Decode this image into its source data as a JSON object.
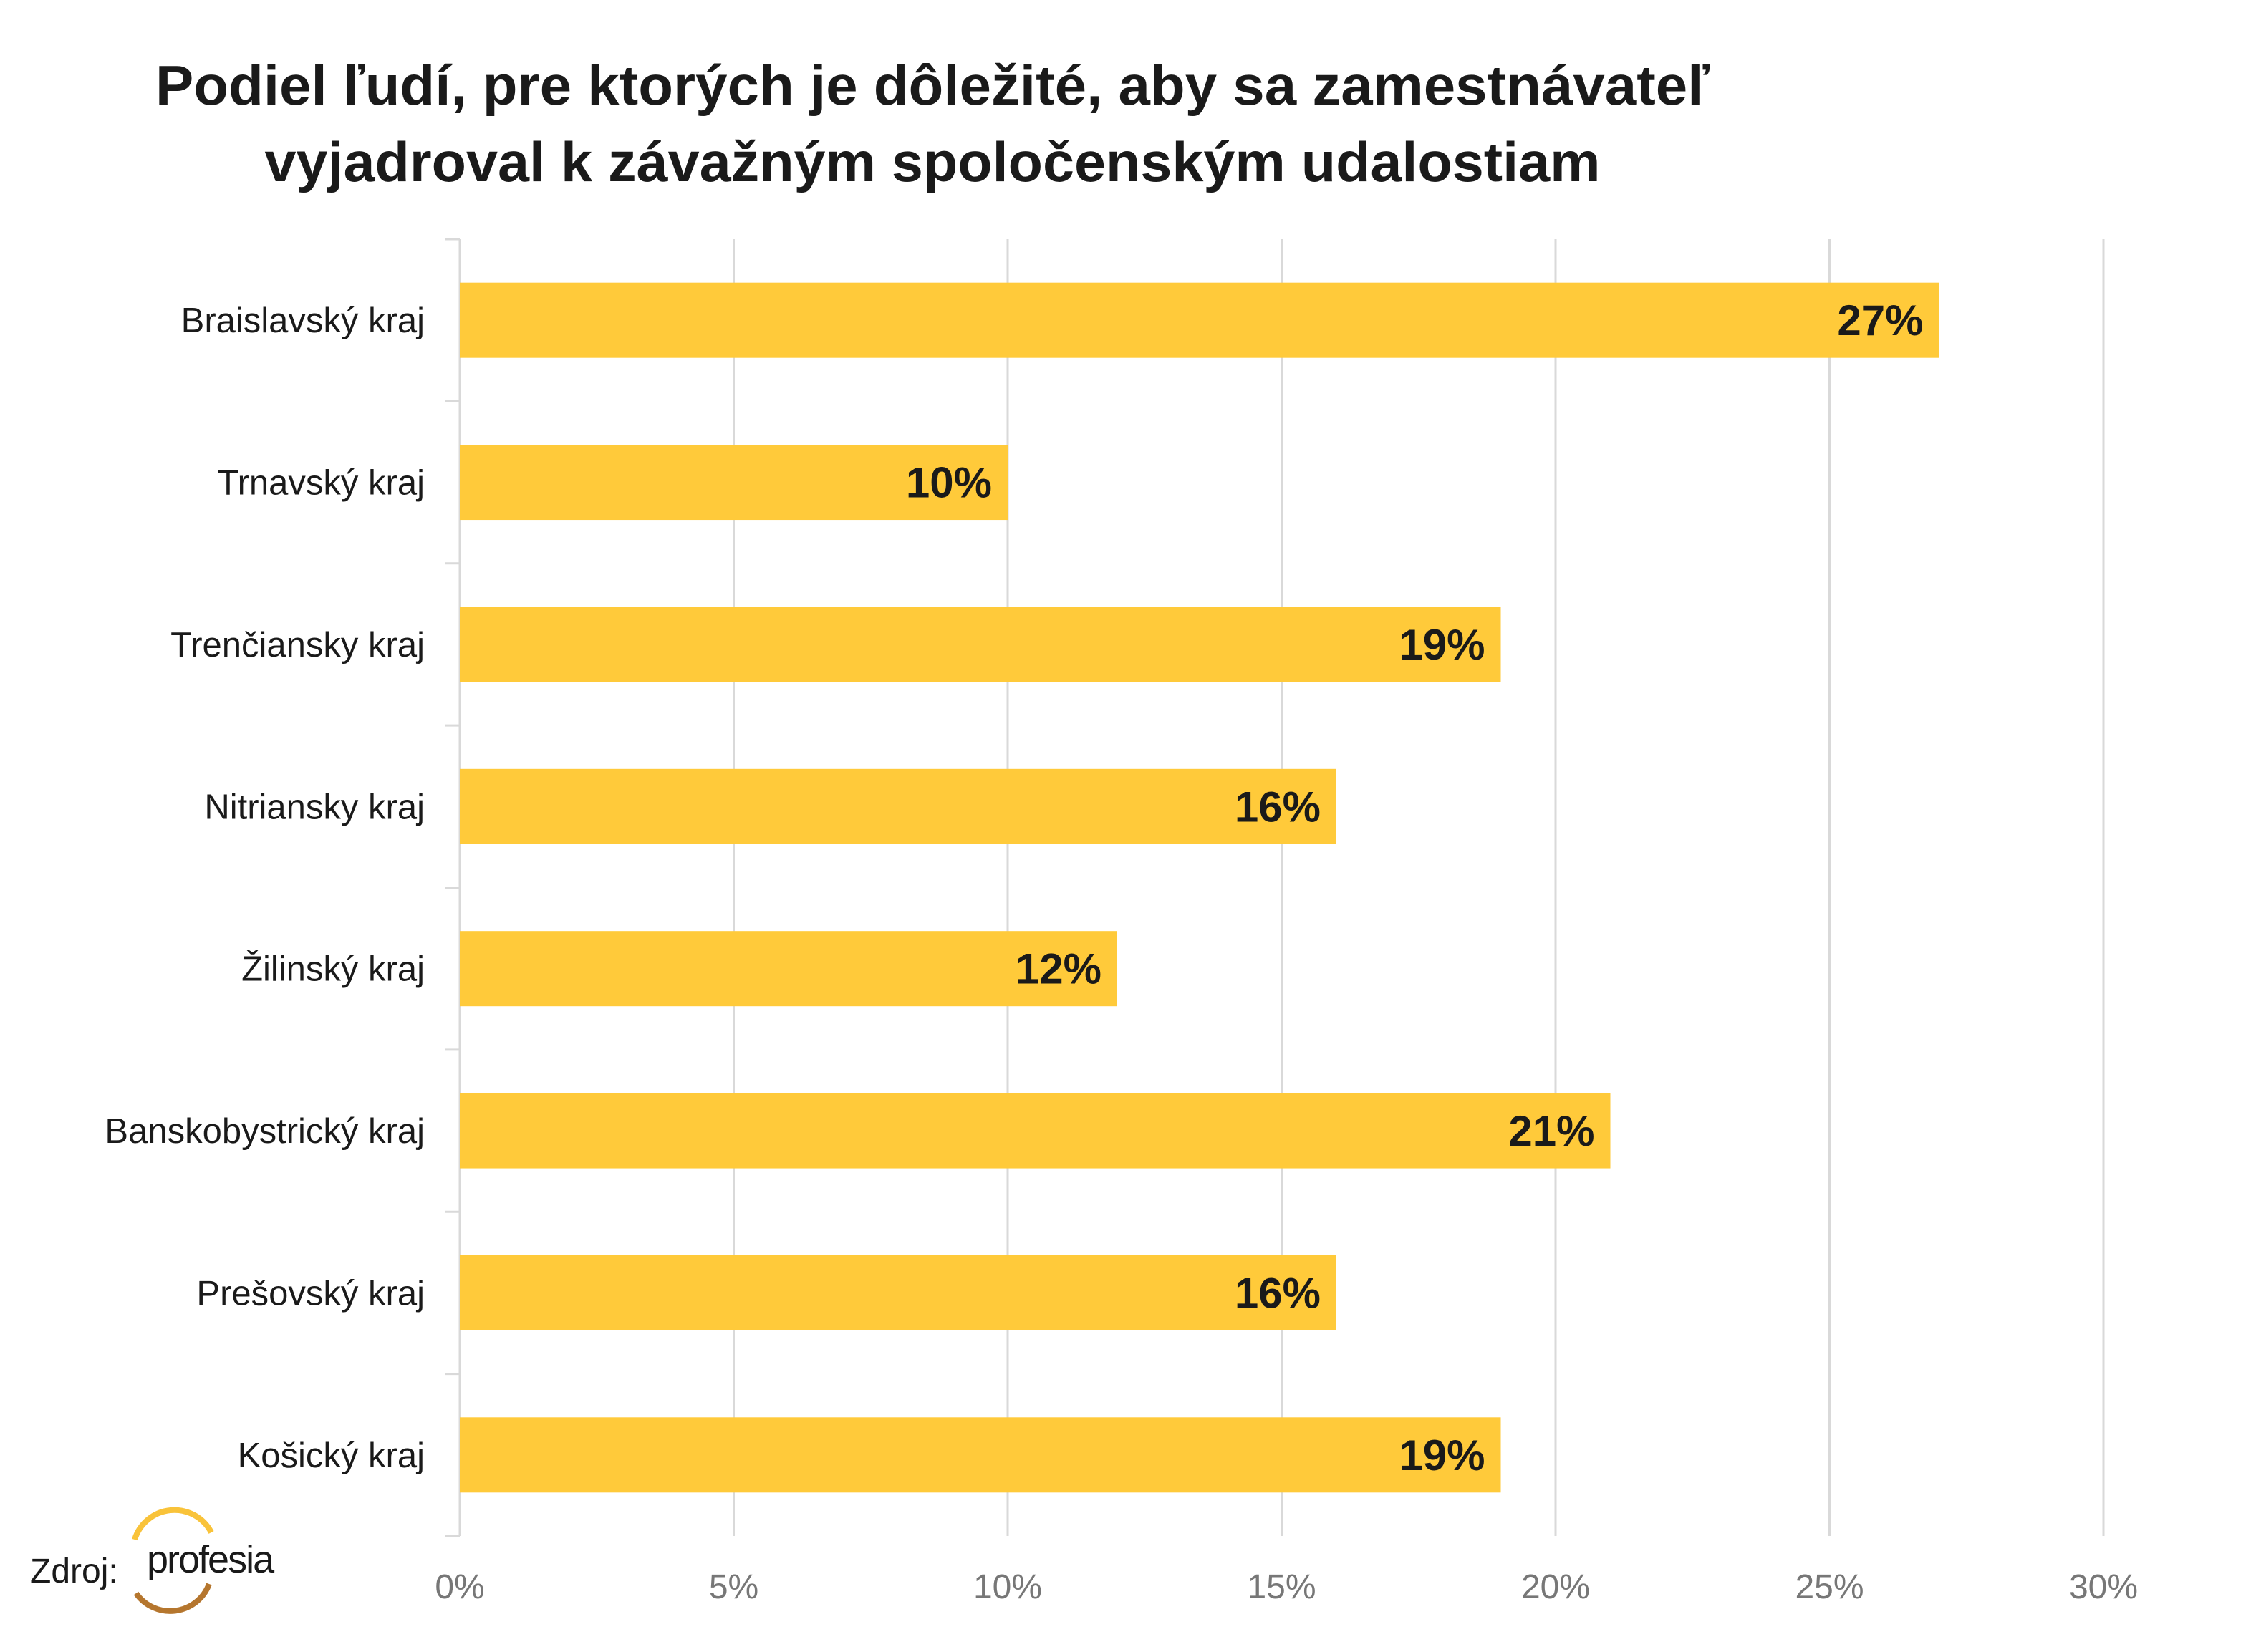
{
  "chart_data": {
    "type": "bar",
    "orientation": "horizontal",
    "title": [
      "Podiel ľudí, pre ktorých je dôležité, aby sa zamestnávateľ",
      "vyjadroval k závažným spoločenským udalostiam"
    ],
    "categories": [
      "Braislavský kraj",
      "Trnavský kraj",
      "Trenčiansky kraj",
      "Nitriansky kraj",
      "Žilinský kraj",
      "Banskobystrický kraj",
      "Prešovský kraj",
      "Košický kraj"
    ],
    "values": [
      27,
      10,
      19,
      16,
      12,
      21,
      16,
      19
    ],
    "value_labels": [
      "27%",
      "10%",
      "19%",
      "16%",
      "12%",
      "21%",
      "16%",
      "19%"
    ],
    "xlim": [
      0,
      30
    ],
    "xticks": [
      0,
      5,
      10,
      15,
      20,
      25,
      30
    ],
    "xtick_labels": [
      "0%",
      "5%",
      "10%",
      "15%",
      "20%",
      "25%",
      "30%"
    ],
    "xlabel": "",
    "ylabel": "",
    "grid": "vertical",
    "bar_color": "#FFCA3A",
    "legend": "none"
  },
  "source": {
    "label": "Zdroj:",
    "logo_text": "profesia"
  }
}
